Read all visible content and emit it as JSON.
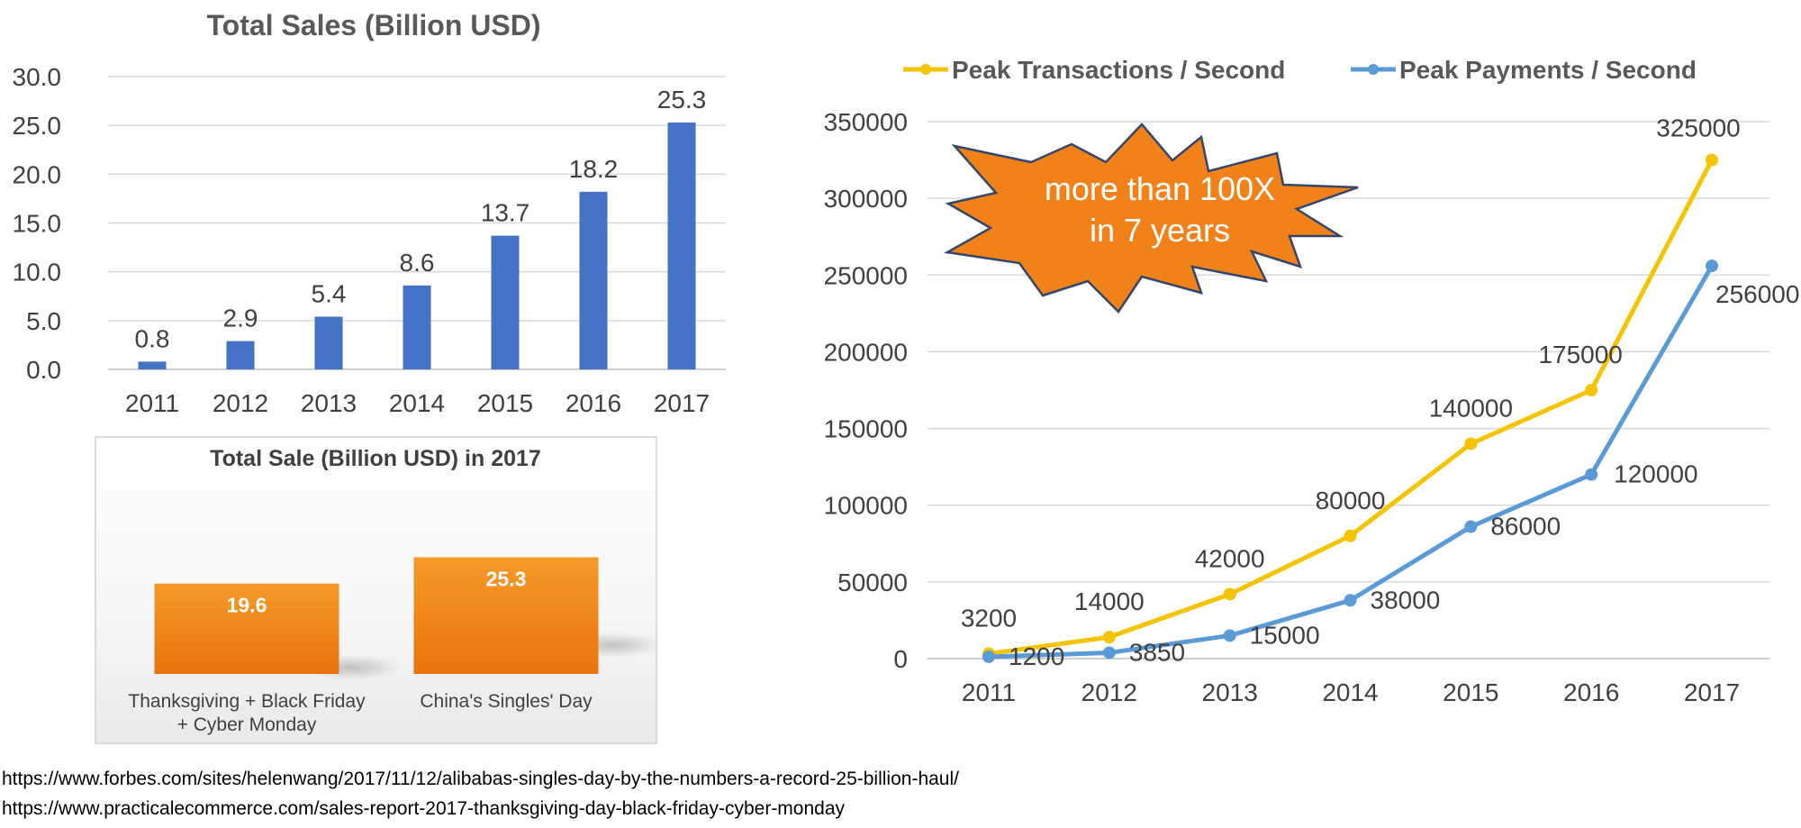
{
  "colors": {
    "bar_blue": "#4472c4",
    "orange": "#f08a1c",
    "yellow_line": "#f5c400",
    "blue_line": "#5b9bd5",
    "text": "#404040",
    "grid": "#d9d9d9"
  },
  "chart_data": [
    {
      "type": "bar",
      "title": "Total Sales (Billion USD)",
      "categories": [
        "2011",
        "2012",
        "2013",
        "2014",
        "2015",
        "2016",
        "2017"
      ],
      "values": [
        0.8,
        2.9,
        5.4,
        8.6,
        13.7,
        18.2,
        25.3
      ],
      "value_labels": [
        "0.8",
        "2.9",
        "5.4",
        "8.6",
        "13.7",
        "18.2",
        "25.3"
      ],
      "ylim": [
        0,
        30
      ],
      "yticks": [
        "0.0",
        "5.0",
        "10.0",
        "15.0",
        "20.0",
        "25.0",
        "30.0"
      ],
      "grid": true
    },
    {
      "type": "bar",
      "title": "Total Sale (Billion USD) in 2017",
      "categories": [
        "Thanksgiving + Black Friday + Cyber Monday",
        "China's Singles' Day"
      ],
      "values": [
        19.6,
        25.3
      ],
      "value_labels": [
        "19.6",
        "25.3"
      ],
      "grid": false
    },
    {
      "type": "line",
      "x": [
        "2011",
        "2012",
        "2013",
        "2014",
        "2015",
        "2016",
        "2017"
      ],
      "series": [
        {
          "name": "Peak Transactions / Second",
          "values": [
            3200,
            14000,
            42000,
            80000,
            140000,
            175000,
            325000
          ],
          "labels": [
            "3200",
            "14000",
            "42000",
            "80000",
            "140000",
            "175000",
            "325000"
          ]
        },
        {
          "name": "Peak Payments / Second",
          "values": [
            1200,
            3850,
            15000,
            38000,
            86000,
            120000,
            256000
          ],
          "labels": [
            "1200",
            "3850",
            "15000",
            "38000",
            "86000",
            "120000",
            "256000"
          ]
        }
      ],
      "ylim": [
        0,
        350000
      ],
      "yticks": [
        "0",
        "50000",
        "100000",
        "150000",
        "200000",
        "250000",
        "300000",
        "350000"
      ],
      "legend_position": "top",
      "grid": true,
      "annotation": [
        "more than 100X",
        "in 7 years"
      ]
    }
  ],
  "sources": [
    "https://www.forbes.com/sites/helenwang/2017/11/12/alibabas-singles-day-by-the-numbers-a-record-25-billion-haul/",
    "https://www.practicalecommerce.com/sales-report-2017-thanksgiving-day-black-friday-cyber-monday"
  ]
}
